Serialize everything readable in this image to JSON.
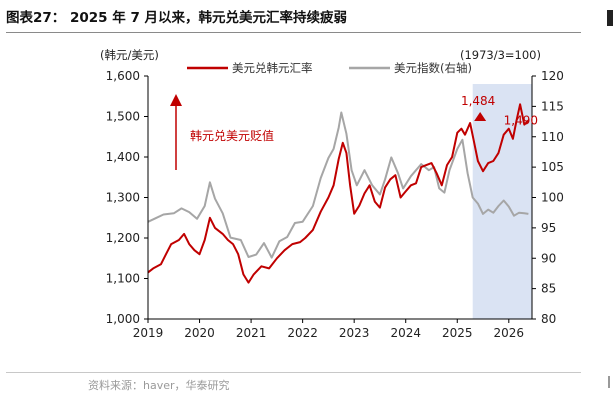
{
  "figure": {
    "title": "图表27：  2025 年 7 月以来，韩元兑美元汇率持续疲弱",
    "source": "资料来源：haver，华泰研究"
  },
  "colors": {
    "krw": "#c00000",
    "usd_index": "#a6a6a6",
    "shade": "#dae3f3",
    "axis": "#000000"
  },
  "chart_data": {
    "type": "line",
    "left_axis_label": "(韩元/美元)",
    "right_axis_label": "(1973/3=100)",
    "x_ticks": [
      "2019",
      "2020",
      "2021",
      "2022",
      "2023",
      "2024",
      "2025",
      "2026"
    ],
    "x_range": [
      2019.0,
      2026.45
    ],
    "y_left": {
      "range": [
        1000,
        1600
      ],
      "ticks": [
        "1,000",
        "1,100",
        "1,200",
        "1,300",
        "1,400",
        "1,500",
        "1,600"
      ]
    },
    "y_right": {
      "range": [
        80,
        120
      ],
      "ticks": [
        "80",
        "85",
        "90",
        "95",
        "100",
        "105",
        "110",
        "115",
        "120"
      ]
    },
    "shaded_region": [
      2025.3,
      2026.45
    ],
    "annotations": {
      "arrow_label": "韩元兑美元贬值",
      "peak_label": "1,484",
      "peak": [
        2025.25,
        1484
      ],
      "last_label": "1,490"
    },
    "series": [
      {
        "name": "美元兑韩元汇率",
        "axis": "left",
        "points": [
          [
            2019.0,
            1115
          ],
          [
            2019.1,
            1125
          ],
          [
            2019.25,
            1135
          ],
          [
            2019.35,
            1160
          ],
          [
            2019.45,
            1185
          ],
          [
            2019.6,
            1195
          ],
          [
            2019.7,
            1210
          ],
          [
            2019.8,
            1185
          ],
          [
            2019.9,
            1170
          ],
          [
            2020.0,
            1160
          ],
          [
            2020.1,
            1195
          ],
          [
            2020.2,
            1250
          ],
          [
            2020.3,
            1225
          ],
          [
            2020.45,
            1210
          ],
          [
            2020.55,
            1195
          ],
          [
            2020.65,
            1185
          ],
          [
            2020.75,
            1160
          ],
          [
            2020.85,
            1110
          ],
          [
            2020.95,
            1090
          ],
          [
            2021.05,
            1110
          ],
          [
            2021.2,
            1130
          ],
          [
            2021.35,
            1125
          ],
          [
            2021.5,
            1150
          ],
          [
            2021.65,
            1170
          ],
          [
            2021.8,
            1185
          ],
          [
            2021.95,
            1190
          ],
          [
            2022.05,
            1200
          ],
          [
            2022.2,
            1220
          ],
          [
            2022.35,
            1265
          ],
          [
            2022.5,
            1300
          ],
          [
            2022.6,
            1330
          ],
          [
            2022.7,
            1395
          ],
          [
            2022.78,
            1435
          ],
          [
            2022.85,
            1410
          ],
          [
            2022.92,
            1330
          ],
          [
            2023.0,
            1260
          ],
          [
            2023.1,
            1280
          ],
          [
            2023.2,
            1310
          ],
          [
            2023.3,
            1330
          ],
          [
            2023.4,
            1290
          ],
          [
            2023.5,
            1275
          ],
          [
            2023.6,
            1325
          ],
          [
            2023.7,
            1345
          ],
          [
            2023.8,
            1355
          ],
          [
            2023.9,
            1300
          ],
          [
            2024.0,
            1315
          ],
          [
            2024.1,
            1330
          ],
          [
            2024.2,
            1335
          ],
          [
            2024.3,
            1375
          ],
          [
            2024.4,
            1380
          ],
          [
            2024.5,
            1385
          ],
          [
            2024.6,
            1360
          ],
          [
            2024.7,
            1330
          ],
          [
            2024.8,
            1380
          ],
          [
            2024.9,
            1400
          ],
          [
            2025.0,
            1460
          ],
          [
            2025.08,
            1470
          ],
          [
            2025.15,
            1455
          ],
          [
            2025.25,
            1484
          ],
          [
            2025.32,
            1440
          ],
          [
            2025.4,
            1390
          ],
          [
            2025.5,
            1365
          ],
          [
            2025.6,
            1385
          ],
          [
            2025.7,
            1390
          ],
          [
            2025.8,
            1410
          ],
          [
            2025.9,
            1455
          ],
          [
            2026.0,
            1470
          ],
          [
            2026.08,
            1445
          ],
          [
            2026.15,
            1490
          ],
          [
            2026.22,
            1530
          ],
          [
            2026.3,
            1480
          ],
          [
            2026.38,
            1490
          ]
        ]
      },
      {
        "name": "美元指数(右轴)",
        "axis": "right",
        "points": [
          [
            2019.0,
            96
          ],
          [
            2019.15,
            96.6
          ],
          [
            2019.3,
            97.2
          ],
          [
            2019.5,
            97.4
          ],
          [
            2019.65,
            98.2
          ],
          [
            2019.8,
            97.6
          ],
          [
            2019.95,
            96.5
          ],
          [
            2020.1,
            98.6
          ],
          [
            2020.2,
            102.5
          ],
          [
            2020.3,
            99.8
          ],
          [
            2020.45,
            97.4
          ],
          [
            2020.6,
            93.4
          ],
          [
            2020.8,
            93.0
          ],
          [
            2020.95,
            90.2
          ],
          [
            2021.1,
            90.6
          ],
          [
            2021.25,
            92.5
          ],
          [
            2021.4,
            90.1
          ],
          [
            2021.55,
            92.8
          ],
          [
            2021.7,
            93.5
          ],
          [
            2021.85,
            95.8
          ],
          [
            2022.0,
            96.0
          ],
          [
            2022.2,
            98.6
          ],
          [
            2022.35,
            103.2
          ],
          [
            2022.5,
            106.5
          ],
          [
            2022.6,
            108.0
          ],
          [
            2022.7,
            111.5
          ],
          [
            2022.75,
            114.0
          ],
          [
            2022.85,
            110.5
          ],
          [
            2022.95,
            104.5
          ],
          [
            2023.05,
            102.0
          ],
          [
            2023.2,
            104.5
          ],
          [
            2023.35,
            102.0
          ],
          [
            2023.5,
            100.5
          ],
          [
            2023.6,
            103.0
          ],
          [
            2023.72,
            106.6
          ],
          [
            2023.85,
            104.0
          ],
          [
            2023.95,
            101.5
          ],
          [
            2024.1,
            103.5
          ],
          [
            2024.3,
            105.5
          ],
          [
            2024.45,
            104.5
          ],
          [
            2024.55,
            105.0
          ],
          [
            2024.65,
            101.5
          ],
          [
            2024.75,
            100.8
          ],
          [
            2024.85,
            104.5
          ],
          [
            2025.0,
            108.0
          ],
          [
            2025.1,
            109.5
          ],
          [
            2025.2,
            104.0
          ],
          [
            2025.3,
            100.0
          ],
          [
            2025.4,
            99.0
          ],
          [
            2025.5,
            97.3
          ],
          [
            2025.6,
            98.0
          ],
          [
            2025.7,
            97.5
          ],
          [
            2025.8,
            98.6
          ],
          [
            2025.9,
            99.5
          ],
          [
            2026.0,
            98.5
          ],
          [
            2026.1,
            97.0
          ],
          [
            2026.2,
            97.5
          ],
          [
            2026.3,
            97.4
          ],
          [
            2026.38,
            97.3
          ]
        ]
      }
    ]
  }
}
